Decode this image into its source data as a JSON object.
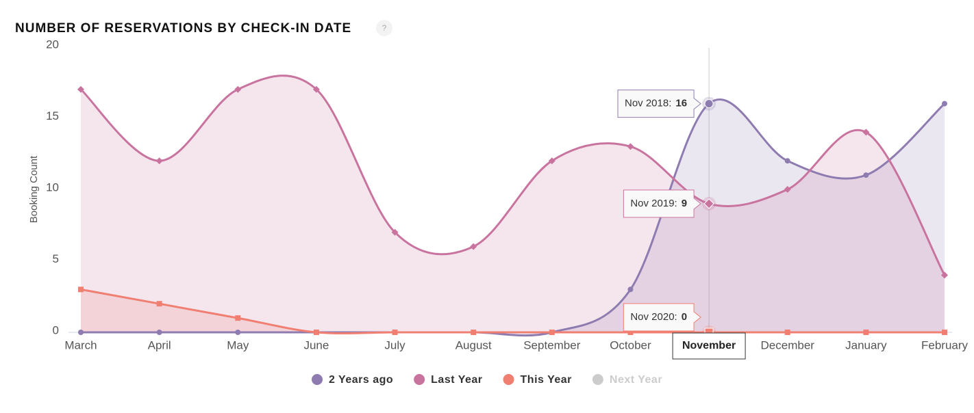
{
  "chart_data": {
    "type": "line",
    "title": "NUMBER OF RESERVATIONS BY CHECK-IN DATE",
    "help_icon": "?",
    "y_label": "Booking Count",
    "categories": [
      "March",
      "April",
      "May",
      "June",
      "July",
      "August",
      "September",
      "October",
      "November",
      "December",
      "January",
      "February"
    ],
    "ylim": [
      0,
      20
    ],
    "yticks": [
      0,
      5,
      10,
      15,
      20
    ],
    "crosshair_index": 8,
    "series": [
      {
        "name": "2 Years ago",
        "color": "#8e7bb0",
        "marker": "circle",
        "tooltip": "Nov 2018:",
        "values": [
          0,
          0,
          0,
          0,
          0,
          0,
          0,
          3,
          16,
          12,
          11,
          16
        ]
      },
      {
        "name": "Last Year",
        "color": "#c9739f",
        "marker": "diamond",
        "tooltip": "Nov 2019:",
        "values": [
          17,
          12,
          17,
          17,
          7,
          6,
          12,
          13,
          9,
          10,
          14,
          4
        ]
      },
      {
        "name": "This Year",
        "color": "#f07f72",
        "marker": "square",
        "tooltip": "Nov 2020:",
        "values": [
          3,
          2,
          1,
          0,
          0,
          0,
          0,
          0,
          0,
          0,
          0,
          0
        ]
      },
      {
        "name": "Next Year",
        "color": "#cccccc",
        "visible": false
      }
    ]
  }
}
